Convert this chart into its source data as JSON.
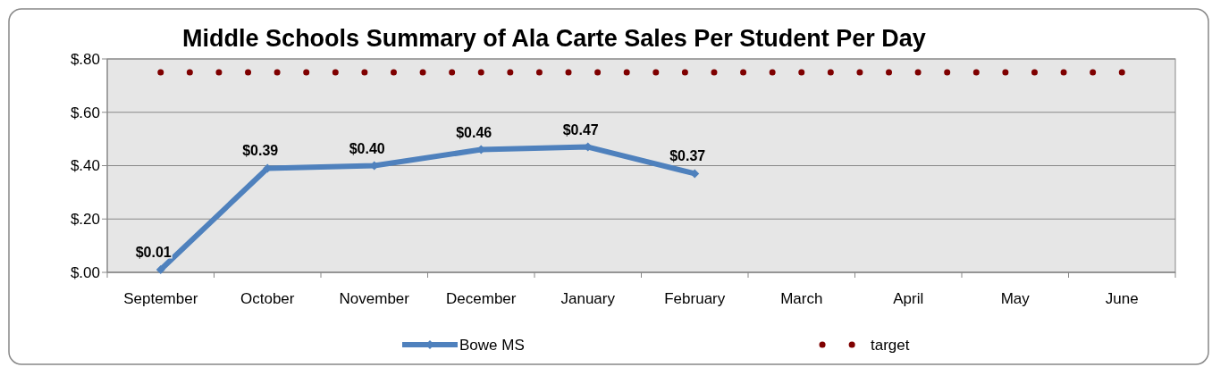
{
  "chart_data": {
    "type": "line",
    "title": "Middle Schools Summary of Ala Carte Sales Per Student Per Day",
    "categories": [
      "September",
      "October",
      "November",
      "December",
      "January",
      "February",
      "March",
      "April",
      "May",
      "June"
    ],
    "series": [
      {
        "name": "Bowe MS",
        "color": "#4f81bd",
        "values": [
          0.01,
          0.39,
          0.4,
          0.46,
          0.47,
          0.37,
          null,
          null,
          null,
          null
        ],
        "value_labels": [
          "$0.01",
          "$0.39",
          "$0.40",
          "$0.46",
          "$0.47",
          "$0.37",
          null,
          null,
          null,
          null
        ],
        "marker": "diamond",
        "line_style": "solid"
      },
      {
        "name": "target",
        "color": "#7f0000",
        "values": [
          0.75,
          0.75,
          0.75,
          0.75,
          0.75,
          0.75,
          0.75,
          0.75,
          0.75,
          0.75
        ],
        "line_style": "dotted",
        "marker": "none"
      }
    ],
    "ylim": [
      0,
      0.8
    ],
    "yticks": [
      {
        "value": 0,
        "label": "$.00"
      },
      {
        "value": 0.2,
        "label": "$.20"
      },
      {
        "value": 0.4,
        "label": "$.40"
      },
      {
        "value": 0.6,
        "label": "$.60"
      },
      {
        "value": 0.8,
        "label": "$.80"
      }
    ],
    "grid": "y",
    "legend": "bottom"
  }
}
